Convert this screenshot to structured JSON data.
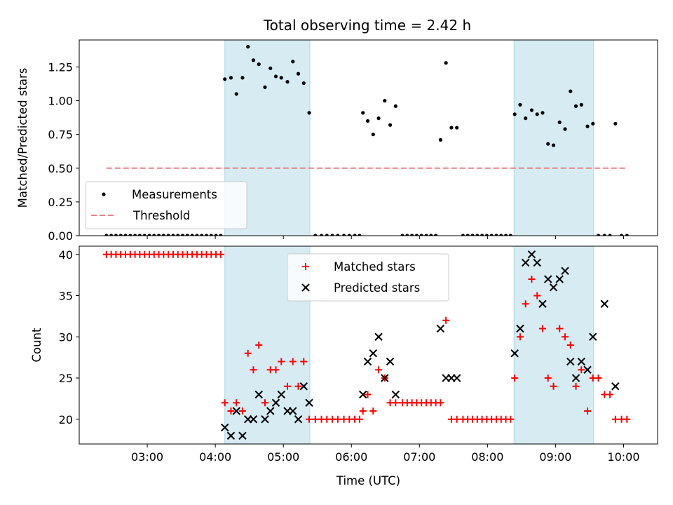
{
  "figure_title": "Total observing time = 2.42 h",
  "chart_data": [
    {
      "type": "scatter",
      "title": "Total observing time = 2.42 h",
      "xlabel": "",
      "ylabel": "Matched/Predicted stars",
      "xlim": [
        2.0,
        10.5
      ],
      "ylim": [
        0.0,
        1.45
      ],
      "yticks": [
        0.0,
        0.25,
        0.5,
        0.75,
        1.0,
        1.25
      ],
      "ytick_labels": [
        "0.00",
        "0.25",
        "0.50",
        "0.75",
        "1.00",
        "1.25"
      ],
      "xticks": [
        3,
        4,
        5,
        6,
        7,
        8,
        9,
        10
      ],
      "shaded_regions": [
        [
          4.14,
          5.39
        ],
        [
          8.39,
          9.56
        ]
      ],
      "shade_color": "#add8e6",
      "legend_position": "lower-left",
      "series": [
        {
          "name": "Measurements",
          "marker": "dot",
          "color": "#000000",
          "points": [
            [
              2.4,
              0
            ],
            [
              2.47,
              0
            ],
            [
              2.54,
              0
            ],
            [
              2.61,
              0
            ],
            [
              2.68,
              0
            ],
            [
              2.75,
              0
            ],
            [
              2.82,
              0
            ],
            [
              2.89,
              0
            ],
            [
              2.96,
              0
            ],
            [
              3.03,
              0
            ],
            [
              3.1,
              0
            ],
            [
              3.17,
              0
            ],
            [
              3.24,
              0
            ],
            [
              3.31,
              0
            ],
            [
              3.38,
              0
            ],
            [
              3.45,
              0
            ],
            [
              3.52,
              0
            ],
            [
              3.59,
              0
            ],
            [
              3.66,
              0
            ],
            [
              3.73,
              0
            ],
            [
              3.8,
              0
            ],
            [
              3.87,
              0
            ],
            [
              3.94,
              0
            ],
            [
              4.01,
              0
            ],
            [
              4.08,
              0
            ],
            [
              4.14,
              1.16
            ],
            [
              4.23,
              1.17
            ],
            [
              4.31,
              1.05
            ],
            [
              4.4,
              1.17
            ],
            [
              4.48,
              1.4
            ],
            [
              4.56,
              1.3
            ],
            [
              4.64,
              1.27
            ],
            [
              4.73,
              1.1
            ],
            [
              4.81,
              1.24
            ],
            [
              4.89,
              1.18
            ],
            [
              4.97,
              1.17
            ],
            [
              5.06,
              1.14
            ],
            [
              5.14,
              1.29
            ],
            [
              5.22,
              1.2
            ],
            [
              5.3,
              1.13
            ],
            [
              5.38,
              0.91
            ],
            [
              5.47,
              0
            ],
            [
              5.56,
              0
            ],
            [
              5.64,
              0
            ],
            [
              5.72,
              0
            ],
            [
              5.8,
              0
            ],
            [
              5.89,
              0
            ],
            [
              5.97,
              0
            ],
            [
              6.05,
              0
            ],
            [
              6.12,
              0
            ],
            [
              6.17,
              0.91
            ],
            [
              6.24,
              0.85
            ],
            [
              6.32,
              0.75
            ],
            [
              6.4,
              0.87
            ],
            [
              6.49,
              1.0
            ],
            [
              6.57,
              0.82
            ],
            [
              6.65,
              0.96
            ],
            [
              6.75,
              0
            ],
            [
              6.82,
              0
            ],
            [
              6.89,
              0
            ],
            [
              6.96,
              0
            ],
            [
              7.03,
              0
            ],
            [
              7.1,
              0
            ],
            [
              7.17,
              0
            ],
            [
              7.24,
              0
            ],
            [
              7.31,
              0.71
            ],
            [
              7.39,
              1.28
            ],
            [
              7.47,
              0.8
            ],
            [
              7.55,
              0.8
            ],
            [
              7.64,
              0
            ],
            [
              7.71,
              0
            ],
            [
              7.78,
              0
            ],
            [
              7.85,
              0
            ],
            [
              7.92,
              0
            ],
            [
              7.99,
              0
            ],
            [
              8.06,
              0
            ],
            [
              8.13,
              0
            ],
            [
              8.2,
              0
            ],
            [
              8.27,
              0
            ],
            [
              8.34,
              0
            ],
            [
              8.4,
              0.9
            ],
            [
              8.48,
              0.97
            ],
            [
              8.56,
              0.87
            ],
            [
              8.65,
              0.93
            ],
            [
              8.73,
              0.9
            ],
            [
              8.81,
              0.91
            ],
            [
              8.89,
              0.68
            ],
            [
              8.97,
              0.67
            ],
            [
              9.06,
              0.84
            ],
            [
              9.14,
              0.79
            ],
            [
              9.22,
              1.07
            ],
            [
              9.3,
              0.96
            ],
            [
              9.38,
              0.97
            ],
            [
              9.47,
              0.81
            ],
            [
              9.55,
              0.83
            ],
            [
              9.63,
              0
            ],
            [
              9.72,
              0
            ],
            [
              9.8,
              0
            ],
            [
              9.88,
              0.83
            ],
            [
              9.97,
              0
            ],
            [
              10.05,
              0
            ]
          ]
        },
        {
          "name": "Threshold",
          "marker": "dashed-line",
          "color": "#f08080",
          "points": [
            [
              2.4,
              0.5
            ],
            [
              10.05,
              0.5
            ]
          ]
        }
      ]
    },
    {
      "type": "scatter",
      "title": "",
      "xlabel": "Time (UTC)",
      "ylabel": "Count",
      "xlim": [
        2.0,
        10.5
      ],
      "ylim": [
        17,
        41
      ],
      "yticks": [
        20,
        25,
        30,
        35,
        40
      ],
      "ytick_labels": [
        "20",
        "25",
        "30",
        "35",
        "40"
      ],
      "xticks": [
        3,
        4,
        5,
        6,
        7,
        8,
        9,
        10
      ],
      "xtick_labels": [
        "03:00",
        "04:00",
        "05:00",
        "06:00",
        "07:00",
        "08:00",
        "09:00",
        "10:00"
      ],
      "shaded_regions": [
        [
          4.14,
          5.39
        ],
        [
          8.39,
          9.56
        ]
      ],
      "shade_color": "#add8e6",
      "legend_position": "upper-center",
      "series": [
        {
          "name": "Matched stars",
          "marker": "plus",
          "color": "#ff0000",
          "points": [
            [
              2.4,
              40
            ],
            [
              2.47,
              40
            ],
            [
              2.54,
              40
            ],
            [
              2.61,
              40
            ],
            [
              2.68,
              40
            ],
            [
              2.75,
              40
            ],
            [
              2.82,
              40
            ],
            [
              2.89,
              40
            ],
            [
              2.96,
              40
            ],
            [
              3.03,
              40
            ],
            [
              3.1,
              40
            ],
            [
              3.17,
              40
            ],
            [
              3.24,
              40
            ],
            [
              3.31,
              40
            ],
            [
              3.38,
              40
            ],
            [
              3.45,
              40
            ],
            [
              3.52,
              40
            ],
            [
              3.59,
              40
            ],
            [
              3.66,
              40
            ],
            [
              3.73,
              40
            ],
            [
              3.8,
              40
            ],
            [
              3.87,
              40
            ],
            [
              3.94,
              40
            ],
            [
              4.01,
              40
            ],
            [
              4.08,
              40
            ],
            [
              4.14,
              22
            ],
            [
              4.23,
              21
            ],
            [
              4.31,
              22
            ],
            [
              4.4,
              21
            ],
            [
              4.48,
              28
            ],
            [
              4.56,
              26
            ],
            [
              4.64,
              29
            ],
            [
              4.73,
              22
            ],
            [
              4.81,
              26
            ],
            [
              4.89,
              26
            ],
            [
              4.97,
              27
            ],
            [
              5.06,
              24
            ],
            [
              5.14,
              27
            ],
            [
              5.22,
              24
            ],
            [
              5.3,
              27
            ],
            [
              5.38,
              20
            ],
            [
              5.47,
              20
            ],
            [
              5.56,
              20
            ],
            [
              5.64,
              20
            ],
            [
              5.72,
              20
            ],
            [
              5.8,
              20
            ],
            [
              5.89,
              20
            ],
            [
              5.97,
              20
            ],
            [
              6.05,
              20
            ],
            [
              6.12,
              20
            ],
            [
              6.17,
              21
            ],
            [
              6.24,
              23
            ],
            [
              6.32,
              21
            ],
            [
              6.4,
              26
            ],
            [
              6.49,
              25
            ],
            [
              6.57,
              22
            ],
            [
              6.65,
              22
            ],
            [
              6.75,
              22
            ],
            [
              6.82,
              22
            ],
            [
              6.89,
              22
            ],
            [
              6.96,
              22
            ],
            [
              7.03,
              22
            ],
            [
              7.1,
              22
            ],
            [
              7.17,
              22
            ],
            [
              7.24,
              22
            ],
            [
              7.31,
              22
            ],
            [
              7.39,
              32
            ],
            [
              7.47,
              20
            ],
            [
              7.55,
              20
            ],
            [
              7.64,
              20
            ],
            [
              7.71,
              20
            ],
            [
              7.78,
              20
            ],
            [
              7.85,
              20
            ],
            [
              7.92,
              20
            ],
            [
              7.99,
              20
            ],
            [
              8.06,
              20
            ],
            [
              8.13,
              20
            ],
            [
              8.2,
              20
            ],
            [
              8.27,
              20
            ],
            [
              8.34,
              20
            ],
            [
              8.4,
              25
            ],
            [
              8.48,
              30
            ],
            [
              8.56,
              34
            ],
            [
              8.65,
              37
            ],
            [
              8.73,
              35
            ],
            [
              8.81,
              31
            ],
            [
              8.89,
              25
            ],
            [
              8.97,
              24
            ],
            [
              9.06,
              31
            ],
            [
              9.14,
              30
            ],
            [
              9.22,
              29
            ],
            [
              9.3,
              24
            ],
            [
              9.38,
              26
            ],
            [
              9.47,
              21
            ],
            [
              9.55,
              25
            ],
            [
              9.63,
              25
            ],
            [
              9.72,
              23
            ],
            [
              9.8,
              23
            ],
            [
              9.88,
              20
            ],
            [
              9.97,
              20
            ],
            [
              10.05,
              20
            ]
          ]
        },
        {
          "name": "Predicted stars",
          "marker": "x",
          "color": "#000000",
          "points": [
            [
              4.14,
              19
            ],
            [
              4.23,
              18
            ],
            [
              4.31,
              21
            ],
            [
              4.4,
              18
            ],
            [
              4.48,
              20
            ],
            [
              4.56,
              20
            ],
            [
              4.64,
              23
            ],
            [
              4.73,
              20
            ],
            [
              4.81,
              21
            ],
            [
              4.89,
              22
            ],
            [
              4.97,
              23
            ],
            [
              5.06,
              21
            ],
            [
              5.14,
              21
            ],
            [
              5.22,
              20
            ],
            [
              5.3,
              24
            ],
            [
              5.38,
              22
            ],
            [
              6.17,
              23
            ],
            [
              6.24,
              27
            ],
            [
              6.32,
              28
            ],
            [
              6.4,
              30
            ],
            [
              6.49,
              25
            ],
            [
              6.57,
              27
            ],
            [
              6.65,
              23
            ],
            [
              7.31,
              31
            ],
            [
              7.39,
              25
            ],
            [
              7.47,
              25
            ],
            [
              7.55,
              25
            ],
            [
              8.4,
              28
            ],
            [
              8.48,
              31
            ],
            [
              8.56,
              39
            ],
            [
              8.65,
              40
            ],
            [
              8.73,
              39
            ],
            [
              8.81,
              34
            ],
            [
              8.89,
              37
            ],
            [
              8.97,
              36
            ],
            [
              9.06,
              37
            ],
            [
              9.14,
              38
            ],
            [
              9.22,
              27
            ],
            [
              9.3,
              25
            ],
            [
              9.38,
              27
            ],
            [
              9.47,
              26
            ],
            [
              9.55,
              30
            ],
            [
              9.72,
              34
            ],
            [
              9.88,
              24
            ]
          ]
        }
      ]
    }
  ]
}
